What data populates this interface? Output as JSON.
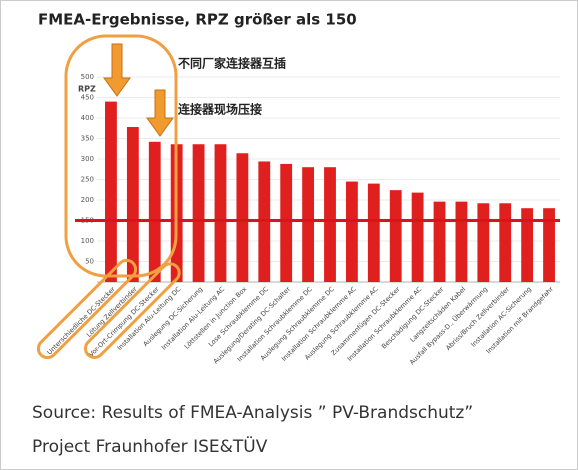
{
  "chart_data": {
    "type": "bar",
    "title": "FMEA-Ergebnisse, RPZ größer als  150",
    "y_label": "RPZ",
    "annotations": [
      "不同厂家连接器互插",
      "连接器现场压接"
    ],
    "source": [
      "Source: Results of FMEA-Analysis ” PV-Brandschutz”",
      "Project Fraunhofer ISE&TÜV"
    ],
    "categories": [
      "Unterschiedliche DC-Stecker",
      "Lötung Zellverbinder",
      "Vor-Ort-Crimpung DC-Stecker",
      "Installation Alu-Leitung DC",
      "Auslegung DC-Sicherung",
      "Installation Alu-Leitung AC",
      "Löttstellen in Junction Box",
      "Lose Schraubklemme DC",
      "Auslegung/Derating DC-Schalter",
      "Installation Schraubklemme DC",
      "Auslegung Schraubklemme DC",
      "Installation Schraubklemme AC",
      "Auslegung Schraubklemme AC",
      "Zusammenfügen DC-Stecker",
      "Installation Schraubklemme AC",
      "Beschädigung DC-Stecker",
      "Langzeitschäden Kabel",
      "Ausfall Bypass-D., Überwärmung",
      "Abriss/Bruch Zellverbinder",
      "Installation AC-Sicherung",
      "Installation mit Brandgefahr"
    ],
    "values": [
      440,
      378,
      342,
      336,
      336,
      336,
      314,
      294,
      288,
      280,
      280,
      245,
      240,
      224,
      218,
      196,
      196,
      192,
      192,
      180,
      180
    ],
    "color": "#e0201f",
    "threshold": 150,
    "threshold_color": "#d9141b",
    "ylim": [
      0,
      500
    ],
    "yticks": [
      50,
      100,
      150,
      200,
      250,
      300,
      350,
      400,
      450,
      500
    ],
    "grid": true
  }
}
